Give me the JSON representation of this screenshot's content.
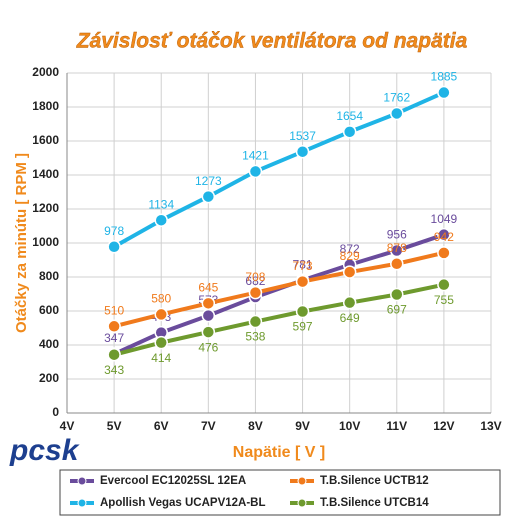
{
  "logo": "pcsk",
  "chart_data": {
    "type": "line",
    "title": "Závislosť otáčok ventilátora od napätia",
    "x_label": "Napätie [ V ]",
    "y_label": "Otáčky za minútu [ RPM ]",
    "x": [
      5,
      6,
      7,
      8,
      9,
      10,
      11,
      12
    ],
    "xlim": [
      4,
      13
    ],
    "xticks": [
      {
        "value": 4,
        "label": "4V"
      },
      {
        "value": 5,
        "label": "5V"
      },
      {
        "value": 6,
        "label": "6V"
      },
      {
        "value": 7,
        "label": "7V"
      },
      {
        "value": 8,
        "label": "8V"
      },
      {
        "value": 9,
        "label": "9V"
      },
      {
        "value": 10,
        "label": "10V"
      },
      {
        "value": 11,
        "label": "11V"
      },
      {
        "value": 12,
        "label": "12V"
      },
      {
        "value": 13,
        "label": "13V"
      }
    ],
    "ylim": [
      0,
      2000
    ],
    "yticks": [
      0,
      200,
      400,
      600,
      800,
      1000,
      1200,
      1400,
      1600,
      1800,
      2000
    ],
    "grid": true,
    "legend": "bottom",
    "series": [
      {
        "name": "Evercool EC12025SL 12EA",
        "color": "#6a4c9c",
        "values": [
          347,
          473,
          573,
          682,
          781,
          872,
          956,
          1049
        ]
      },
      {
        "name": "T.B.Silence UCTB12",
        "color": "#f07a1c",
        "values": [
          510,
          580,
          645,
          708,
          773,
          829,
          878,
          942
        ]
      },
      {
        "name": "Apollish Vegas UCAPV12A-BL",
        "color": "#1fb4e6",
        "values": [
          978,
          1134,
          1273,
          1421,
          1537,
          1654,
          1762,
          1885
        ]
      },
      {
        "name": "T.B.Silence UTCB14",
        "color": "#6e9a2e",
        "values": [
          343,
          414,
          476,
          538,
          597,
          649,
          697,
          755
        ]
      }
    ]
  }
}
